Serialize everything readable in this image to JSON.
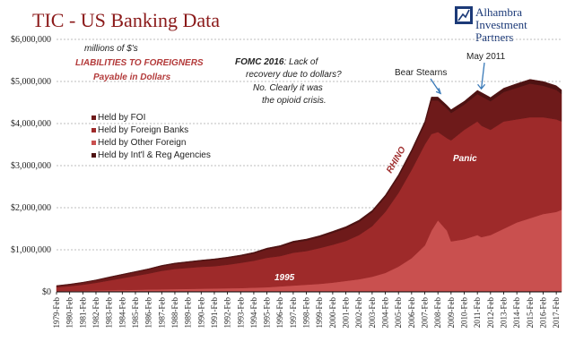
{
  "chart_data": {
    "type": "area",
    "stacked": true,
    "title": "TIC - US Banking Data",
    "subtitle_lines": [
      "millions of $'s",
      "LIABILITIES TO FOREIGNERS",
      "Payable in Dollars"
    ],
    "ylim": [
      0,
      6000000
    ],
    "y_ticks": [
      "$0",
      "$1,000,000",
      "$2,000,000",
      "$3,000,000",
      "$4,000,000",
      "$5,000,000",
      "$6,000,000"
    ],
    "y_tick_values": [
      0,
      1000000,
      2000000,
      3000000,
      4000000,
      5000000,
      6000000
    ],
    "x_tick_labels": [
      "1979-Feb",
      "1980-Feb",
      "1981-Feb",
      "1982-Feb",
      "1983-Feb",
      "1984-Feb",
      "1985-Feb",
      "1986-Feb",
      "1987-Feb",
      "1988-Feb",
      "1989-Feb",
      "1990-Feb",
      "1991-Feb",
      "1992-Feb",
      "1993-Feb",
      "1994-Feb",
      "1995-Feb",
      "1996-Feb",
      "1997-Feb",
      "1998-Feb",
      "1999-Feb",
      "2000-Feb",
      "2001-Feb",
      "2002-Feb",
      "2003-Feb",
      "2004-Feb",
      "2005-Feb",
      "2006-Feb",
      "2007-Feb",
      "2008-Feb",
      "2009-Feb",
      "2010-Feb",
      "2011-Feb",
      "2012-Feb",
      "2013-Feb",
      "2014-Feb",
      "2015-Feb",
      "2016-Feb",
      "2017-Feb"
    ],
    "x": [
      1979,
      1980,
      1981,
      1982,
      1983,
      1984,
      1985,
      1986,
      1987,
      1988,
      1989,
      1990,
      1991,
      1992,
      1993,
      1994,
      1995,
      1996,
      1997,
      1998,
      1999,
      2000,
      2001,
      2002,
      2003,
      2004,
      2005,
      2006,
      2007,
      2007.5,
      2008,
      2008.7,
      2009,
      2010,
      2011,
      2011.3,
      2012,
      2013,
      2014,
      2015,
      2016,
      2017,
      2017.4
    ],
    "series": [
      {
        "name": "Held by Other Foreign",
        "color": "#c9504f",
        "values": [
          20000,
          25000,
          30000,
          35000,
          40000,
          45000,
          50000,
          55000,
          60000,
          65000,
          70000,
          75000,
          80000,
          85000,
          90000,
          100000,
          110000,
          130000,
          150000,
          170000,
          190000,
          220000,
          260000,
          300000,
          360000,
          450000,
          600000,
          800000,
          1100000,
          1450000,
          1700000,
          1450000,
          1200000,
          1250000,
          1350000,
          1300000,
          1350000,
          1500000,
          1650000,
          1750000,
          1850000,
          1900000,
          1950000
        ]
      },
      {
        "name": "Held by Foreign Banks",
        "color": "#9e2a2a",
        "values": [
          90000,
          110000,
          140000,
          180000,
          230000,
          280000,
          330000,
          380000,
          440000,
          480000,
          500000,
          520000,
          530000,
          560000,
          600000,
          640000,
          700000,
          720000,
          780000,
          800000,
          850000,
          900000,
          950000,
          1050000,
          1200000,
          1450000,
          1750000,
          2100000,
          2400000,
          2300000,
          2100000,
          2200000,
          2400000,
          2600000,
          2700000,
          2650000,
          2500000,
          2550000,
          2450000,
          2400000,
          2300000,
          2200000,
          2100000
        ]
      },
      {
        "name": "Held by FOI",
        "color": "#6e1a1a",
        "values": [
          30000,
          40000,
          50000,
          60000,
          70000,
          80000,
          90000,
          100000,
          110000,
          120000,
          130000,
          140000,
          150000,
          155000,
          160000,
          170000,
          200000,
          220000,
          240000,
          250000,
          260000,
          280000,
          300000,
          310000,
          330000,
          350000,
          380000,
          420000,
          480000,
          800000,
          750000,
          700000,
          650000,
          600000,
          650000,
          700000,
          680000,
          700000,
          750000,
          800000,
          750000,
          700000,
          650000
        ]
      },
      {
        "name": "Held by Int'l & Reg Agencies",
        "color": "#4e1212",
        "values": [
          10000,
          10000,
          10000,
          10000,
          15000,
          15000,
          15000,
          15000,
          20000,
          20000,
          20000,
          20000,
          25000,
          25000,
          25000,
          30000,
          30000,
          30000,
          35000,
          35000,
          35000,
          40000,
          40000,
          45000,
          45000,
          50000,
          55000,
          60000,
          70000,
          80000,
          80000,
          80000,
          80000,
          80000,
          90000,
          90000,
          90000,
          90000,
          100000,
          100000,
          100000,
          100000,
          100000
        ]
      }
    ],
    "legend": {
      "placement": "left-center",
      "entries": [
        "Held by FOI",
        "Held by Foreign Banks",
        "Held by Other Foreign",
        "Held by Int'l & Reg Agencies"
      ],
      "colors": [
        "#6e1a1a",
        "#9e2a2a",
        "#c9504f",
        "#4e1212"
      ]
    },
    "annotations": [
      {
        "id": "fomc",
        "lines": [
          "FOMC 2016",
          ": Lack of",
          "recovery due to dollars?",
          "No. Clearly it was",
          "the opioid crisis."
        ]
      },
      {
        "id": "bear",
        "text": "Bear Stearns",
        "x": 2008.2
      },
      {
        "id": "may",
        "text": "May 2011",
        "x": 2011.3
      },
      {
        "id": "rhino",
        "text": "RHINO"
      },
      {
        "id": "panic",
        "text": "Panic"
      },
      {
        "id": "y1995",
        "text": "1995"
      }
    ],
    "grid": "horizontal-dashed",
    "xlabel": "",
    "ylabel": ""
  },
  "logo": {
    "lines": [
      "Alhambra",
      "Investment",
      "Partners"
    ]
  }
}
